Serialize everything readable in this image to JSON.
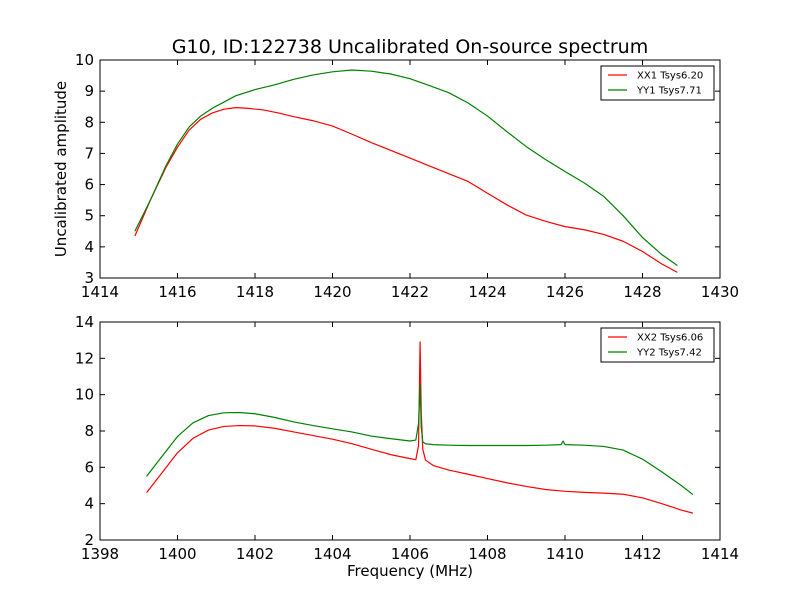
{
  "figure": {
    "title": "G10, ID:122738 Uncalibrated On-source spectrum"
  },
  "chart_data": [
    {
      "type": "line",
      "title": "G10, ID:122738 Uncalibrated On-source spectrum",
      "xlabel": "",
      "ylabel": "Uncalibrated amplitude",
      "xlim": [
        1414,
        1430
      ],
      "ylim": [
        3,
        10
      ],
      "xticks": [
        1414,
        1416,
        1418,
        1420,
        1422,
        1424,
        1426,
        1428,
        1430
      ],
      "yticks": [
        3,
        4,
        5,
        6,
        7,
        8,
        9,
        10
      ],
      "grid": false,
      "legend_position": "top-right",
      "series": [
        {
          "name": "XX1 Tsys6.20",
          "color": "#ff0000",
          "x": [
            1414.9,
            1415.3,
            1415.7,
            1416.0,
            1416.3,
            1416.6,
            1416.9,
            1417.2,
            1417.5,
            1417.8,
            1418.2,
            1418.6,
            1419.0,
            1419.5,
            1420.0,
            1420.5,
            1421.0,
            1421.5,
            1422.0,
            1422.5,
            1423.0,
            1423.5,
            1424.0,
            1424.5,
            1425.0,
            1425.5,
            1426.0,
            1426.5,
            1427.0,
            1427.5,
            1428.0,
            1428.5,
            1428.9
          ],
          "y": [
            4.35,
            5.5,
            6.55,
            7.2,
            7.75,
            8.1,
            8.3,
            8.42,
            8.47,
            8.45,
            8.4,
            8.3,
            8.18,
            8.05,
            7.88,
            7.62,
            7.35,
            7.1,
            6.85,
            6.6,
            6.35,
            6.1,
            5.72,
            5.35,
            5.02,
            4.82,
            4.65,
            4.55,
            4.4,
            4.18,
            3.85,
            3.45,
            3.18
          ]
        },
        {
          "name": "YY1 Tsys7.71",
          "color": "#008000",
          "x": [
            1414.9,
            1415.3,
            1415.7,
            1416.0,
            1416.3,
            1416.6,
            1416.9,
            1417.2,
            1417.5,
            1418.0,
            1418.5,
            1419.0,
            1419.5,
            1420.0,
            1420.5,
            1421.0,
            1421.5,
            1422.0,
            1422.5,
            1423.0,
            1423.5,
            1424.0,
            1424.5,
            1425.0,
            1425.5,
            1426.0,
            1426.5,
            1427.0,
            1427.5,
            1428.0,
            1428.5,
            1428.9
          ],
          "y": [
            4.5,
            5.5,
            6.6,
            7.3,
            7.85,
            8.2,
            8.45,
            8.65,
            8.85,
            9.05,
            9.2,
            9.38,
            9.52,
            9.62,
            9.68,
            9.64,
            9.55,
            9.4,
            9.18,
            8.95,
            8.62,
            8.2,
            7.7,
            7.22,
            6.8,
            6.42,
            6.05,
            5.62,
            5.0,
            4.3,
            3.75,
            3.4
          ]
        }
      ]
    },
    {
      "type": "line",
      "title": "",
      "xlabel": "Frequency (MHz)",
      "ylabel": "",
      "xlim": [
        1398,
        1414
      ],
      "ylim": [
        2,
        14
      ],
      "xticks": [
        1398,
        1400,
        1402,
        1404,
        1406,
        1408,
        1410,
        1412,
        1414
      ],
      "yticks": [
        2,
        4,
        6,
        8,
        10,
        12,
        14
      ],
      "grid": false,
      "legend_position": "top-right",
      "series": [
        {
          "name": "XX2 Tsys6.06",
          "color": "#ff0000",
          "x": [
            1399.2,
            1399.6,
            1400.0,
            1400.4,
            1400.8,
            1401.2,
            1401.6,
            1402.0,
            1402.5,
            1403.0,
            1403.5,
            1404.0,
            1404.5,
            1405.0,
            1405.5,
            1406.0,
            1406.15,
            1406.22,
            1406.26,
            1406.29,
            1406.33,
            1406.4,
            1406.6,
            1407.0,
            1407.5,
            1408.0,
            1408.5,
            1409.0,
            1409.5,
            1410.0,
            1410.5,
            1411.0,
            1411.5,
            1412.0,
            1412.5,
            1413.0,
            1413.3
          ],
          "y": [
            4.6,
            5.7,
            6.8,
            7.6,
            8.05,
            8.25,
            8.3,
            8.28,
            8.15,
            7.95,
            7.75,
            7.55,
            7.3,
            7.0,
            6.7,
            6.48,
            6.42,
            7.2,
            12.9,
            9.0,
            7.0,
            6.4,
            6.1,
            5.85,
            5.62,
            5.38,
            5.15,
            4.95,
            4.78,
            4.68,
            4.62,
            4.58,
            4.52,
            4.32,
            4.0,
            3.65,
            3.48
          ]
        },
        {
          "name": "YY2 Tsys7.42",
          "color": "#008000",
          "x": [
            1399.2,
            1399.6,
            1400.0,
            1400.4,
            1400.8,
            1401.2,
            1401.6,
            1402.0,
            1402.5,
            1403.0,
            1403.5,
            1404.0,
            1404.5,
            1405.0,
            1405.5,
            1406.0,
            1406.15,
            1406.22,
            1406.26,
            1406.29,
            1406.33,
            1406.4,
            1406.6,
            1407.0,
            1407.5,
            1408.0,
            1408.5,
            1409.0,
            1409.5,
            1409.9,
            1409.95,
            1410.0,
            1410.5,
            1411.0,
            1411.5,
            1412.0,
            1412.5,
            1413.0,
            1413.3
          ],
          "y": [
            5.5,
            6.6,
            7.7,
            8.45,
            8.85,
            9.0,
            9.02,
            8.95,
            8.75,
            8.5,
            8.3,
            8.12,
            7.95,
            7.72,
            7.58,
            7.45,
            7.5,
            8.4,
            10.6,
            8.2,
            7.4,
            7.3,
            7.25,
            7.22,
            7.2,
            7.2,
            7.2,
            7.2,
            7.22,
            7.25,
            7.45,
            7.25,
            7.22,
            7.15,
            6.95,
            6.45,
            5.75,
            5.0,
            4.5
          ]
        }
      ]
    }
  ]
}
